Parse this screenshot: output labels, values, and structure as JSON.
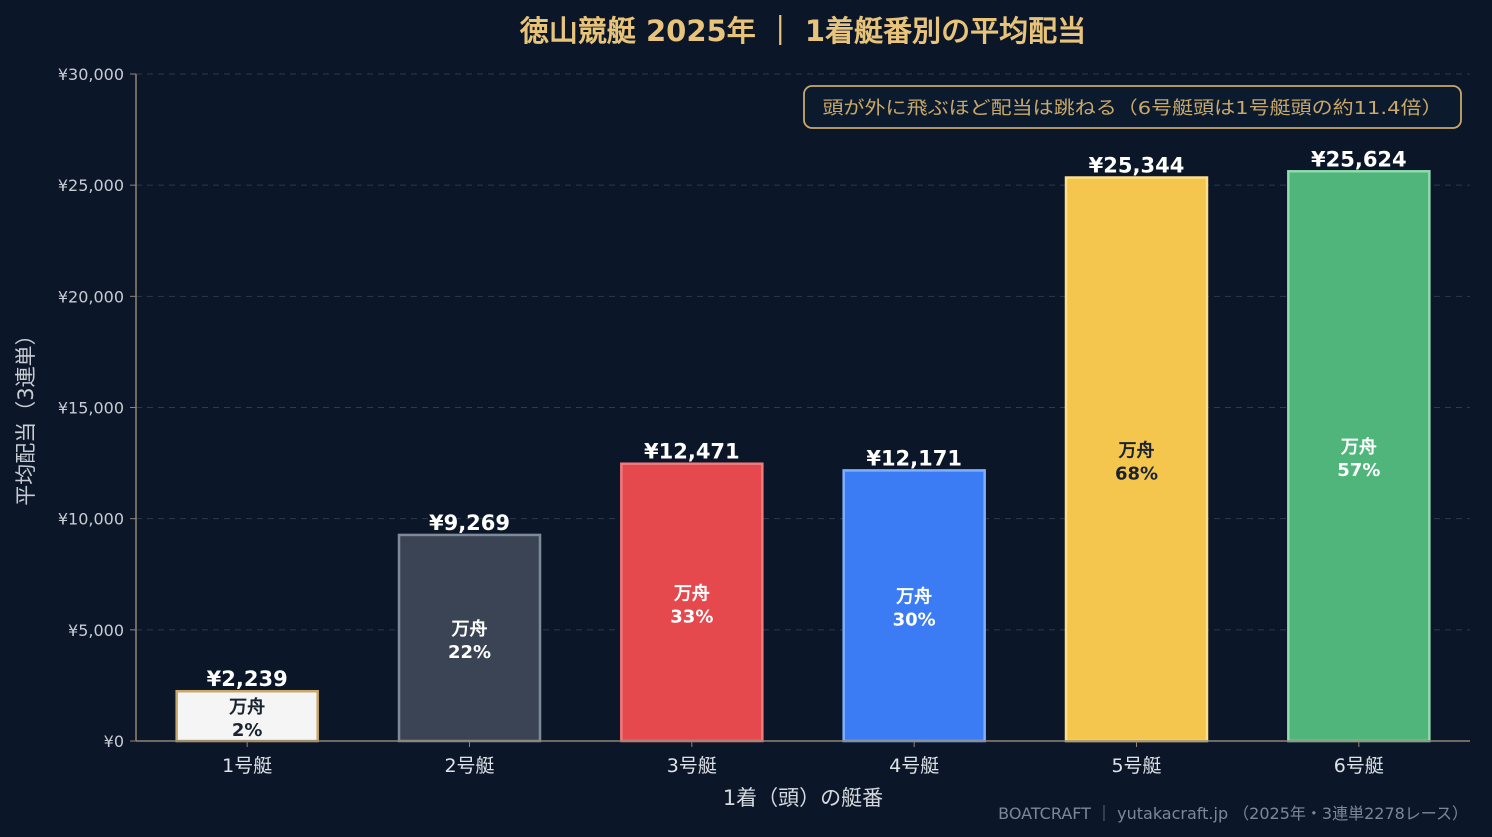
{
  "chart_data": {
    "type": "bar",
    "title": "徳山競艇 2025年 ｜ 1着艇番別の平均配当",
    "xlabel": "1着（頭）の艇番",
    "ylabel": "平均配当（3連単）",
    "categories": [
      "1号艇",
      "2号艇",
      "3号艇",
      "4号艇",
      "5号艇",
      "6号艇"
    ],
    "values": [
      2239,
      9269,
      12471,
      12171,
      25344,
      25624
    ],
    "value_labels": [
      "¥2,239",
      "¥9,269",
      "¥12,471",
      "¥12,171",
      "¥25,344",
      "¥25,624"
    ],
    "manshu_label": "万舟",
    "manshu_rates": [
      "2%",
      "22%",
      "33%",
      "30%",
      "68%",
      "57%"
    ],
    "ylim": [
      0,
      30000
    ],
    "yticks": [
      0,
      5000,
      10000,
      15000,
      20000,
      25000,
      30000
    ],
    "ytick_labels": [
      "¥0",
      "¥5,000",
      "¥10,000",
      "¥15,000",
      "¥20,000",
      "¥25,000",
      "¥30,000"
    ],
    "grid": true,
    "annotation": "頭が外に飛ぶほど配当は跳ねる（6号艇頭は1号艇頭の約11.4倍）",
    "footer": "BOATCRAFT ｜ yutakacraft.jp （2025年・3連単2278レース）",
    "colors": {
      "background": "#0b1628",
      "title": "#e8c47a",
      "bars": [
        "#f5f5f5",
        "#3a4454",
        "#e5484d",
        "#3b7cf5",
        "#f4c64e",
        "#4fb57a"
      ],
      "bar_edges": [
        "#c9a86a",
        "#7f8a99",
        "#f07a7e",
        "#7fb0ff",
        "#ffe08a",
        "#8fdcae"
      ],
      "inner_text": [
        "#1b2230",
        "#ffffff",
        "#ffffff",
        "#ffffff",
        "#1b2230",
        "#ffffff"
      ]
    }
  }
}
